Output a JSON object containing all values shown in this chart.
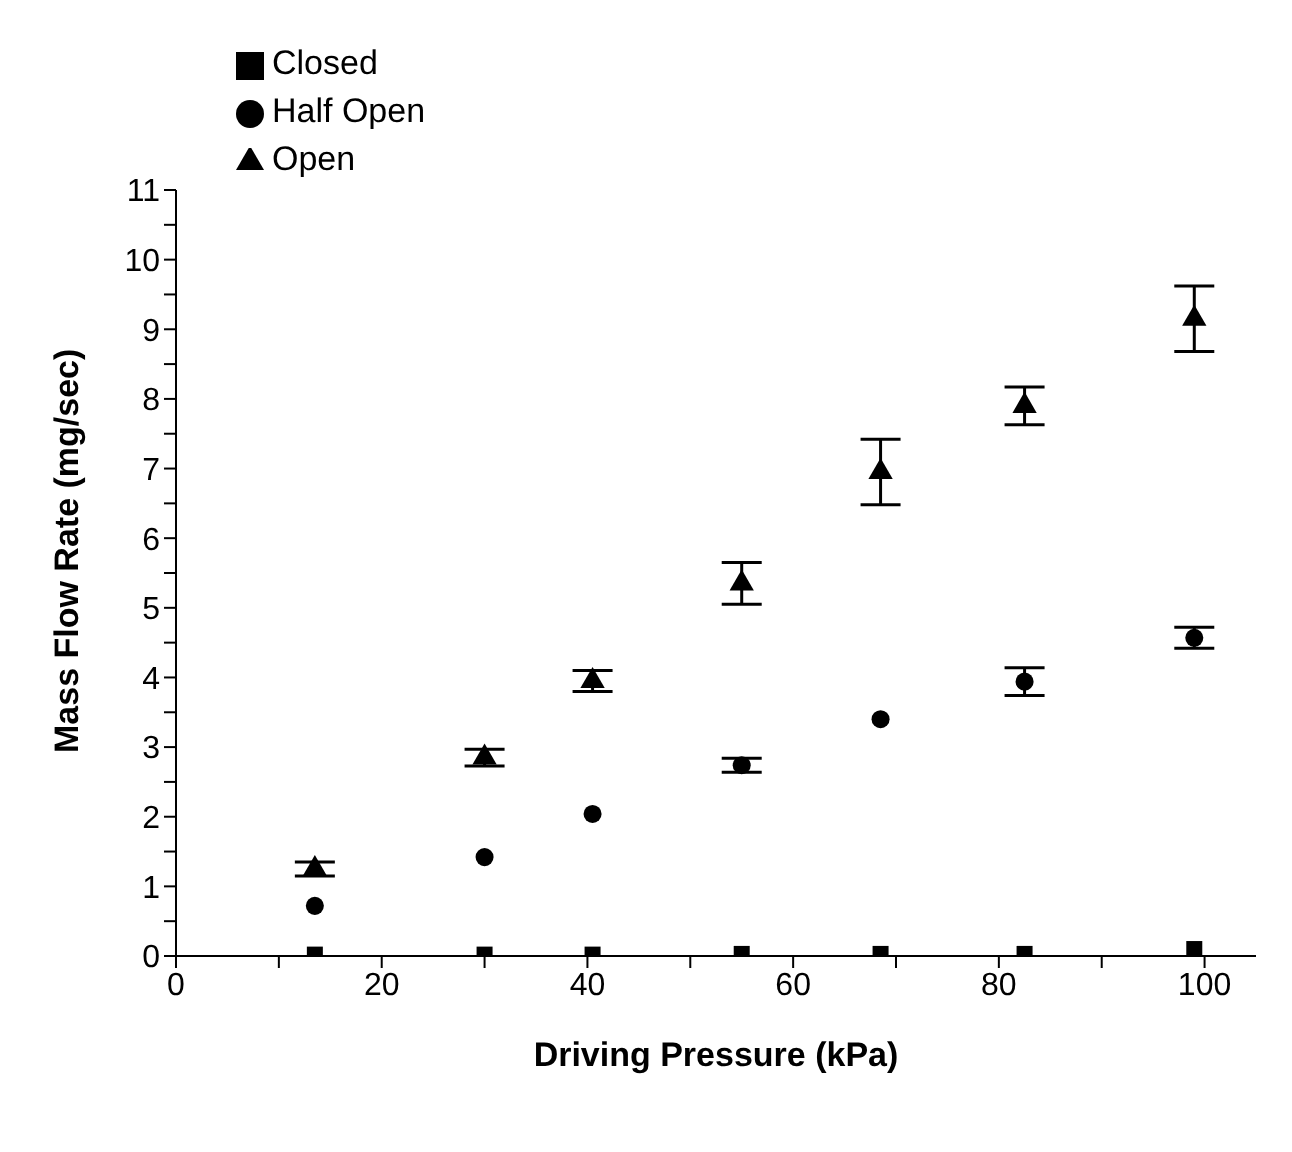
{
  "chart_data": {
    "type": "scatter",
    "xlabel": "Driving Pressure (kPa)",
    "ylabel": "Mass Flow Rate (mg/sec)",
    "xlim": [
      0,
      105
    ],
    "ylim": [
      0,
      11
    ],
    "xticks": [
      0,
      {
        "value": 10,
        "label": null
      },
      20,
      {
        "value": 30,
        "label": null
      },
      40,
      {
        "value": 50,
        "label": null
      },
      60,
      {
        "value": 70,
        "label": null
      },
      80,
      {
        "value": 90,
        "label": null
      },
      100
    ],
    "yticks": [
      0,
      {
        "value": 0.5,
        "label": null
      },
      1,
      {
        "value": 1.5,
        "label": null
      },
      2,
      {
        "value": 2.5,
        "label": null
      },
      3,
      {
        "value": 3.5,
        "label": null
      },
      4,
      {
        "value": 4.5,
        "label": null
      },
      5,
      {
        "value": 5.5,
        "label": null
      },
      6,
      {
        "value": 6.5,
        "label": null
      },
      7,
      {
        "value": 7.5,
        "label": null
      },
      8,
      {
        "value": 8.5,
        "label": null
      },
      9,
      {
        "value": 9.5,
        "label": null
      },
      10,
      {
        "value": 10.5,
        "label": null
      },
      11
    ],
    "x": [
      13.5,
      30,
      40.5,
      55,
      68.5,
      82.5,
      99
    ],
    "series": [
      {
        "name": "Closed",
        "color": "#000000",
        "marker": "square",
        "values": [
          0.02,
          0.02,
          0.02,
          0.03,
          0.03,
          0.03,
          0.1
        ]
      },
      {
        "name": "Half Open",
        "color": "#000000",
        "marker": "circle",
        "values": [
          0.72,
          1.42,
          2.04,
          2.74,
          3.4,
          3.94,
          4.57
        ],
        "errors": [
          null,
          null,
          null,
          0.1,
          null,
          0.2,
          0.15
        ]
      },
      {
        "name": "Open",
        "color": "#000000",
        "marker": "triangle",
        "values": [
          1.25,
          2.85,
          3.95,
          5.35,
          6.95,
          7.9,
          9.15
        ],
        "errors": [
          0.1,
          0.12,
          0.15,
          0.3,
          0.47,
          0.27,
          0.47
        ]
      }
    ],
    "grid": false,
    "legend": "top left"
  }
}
